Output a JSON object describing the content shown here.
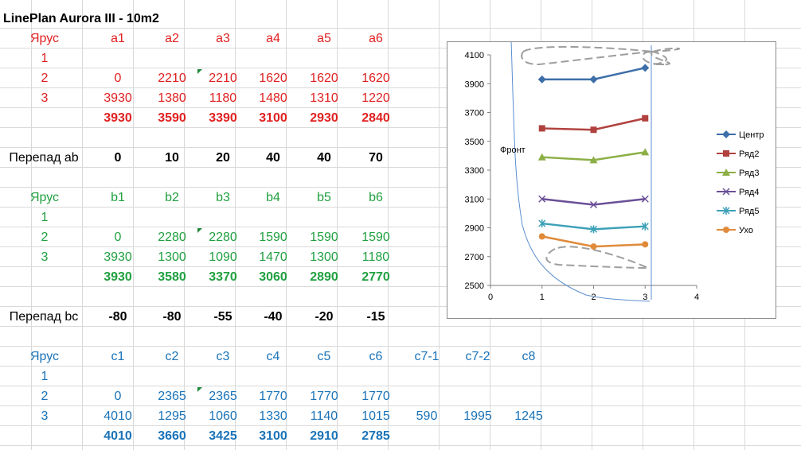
{
  "title": "LinePlan Aurora III - 10m2",
  "table_a": {
    "header": [
      "Ярус",
      "a1",
      "a2",
      "a3",
      "a4",
      "a5",
      "a6"
    ],
    "rows": [
      [
        "1",
        "",
        "",
        "",
        "",
        "",
        ""
      ],
      [
        "2",
        "0",
        "2210",
        "2210",
        "1620",
        "1620",
        "1620"
      ],
      [
        "3",
        "3930",
        "1380",
        "1180",
        "1480",
        "1310",
        "1220"
      ]
    ],
    "totals": [
      "3930",
      "3590",
      "3390",
      "3100",
      "2930",
      "2840"
    ]
  },
  "perepad_ab": {
    "label": "Перепад ab",
    "values": [
      "0",
      "10",
      "20",
      "40",
      "40",
      "70"
    ]
  },
  "table_b": {
    "header": [
      "Ярус",
      "b1",
      "b2",
      "b3",
      "b4",
      "b5",
      "b6"
    ],
    "rows": [
      [
        "1",
        "",
        "",
        "",
        "",
        "",
        ""
      ],
      [
        "2",
        "0",
        "2280",
        "2280",
        "1590",
        "1590",
        "1590"
      ],
      [
        "3",
        "3930",
        "1300",
        "1090",
        "1470",
        "1300",
        "1180"
      ]
    ],
    "totals": [
      "3930",
      "3580",
      "3370",
      "3060",
      "2890",
      "2770"
    ]
  },
  "perepad_bc": {
    "label": "Перепад bc",
    "values": [
      "-80",
      "-80",
      "-55",
      "-40",
      "-20",
      "-15"
    ]
  },
  "table_c": {
    "header": [
      "Ярус",
      "c1",
      "c2",
      "c3",
      "c4",
      "c5",
      "c6",
      "c7-1",
      "c7-2",
      "c8"
    ],
    "rows": [
      [
        "1",
        "",
        "",
        "",
        "",
        "",
        "",
        "",
        "",
        ""
      ],
      [
        "2",
        "0",
        "2365",
        "2365",
        "1770",
        "1770",
        "1770",
        "",
        "",
        ""
      ],
      [
        "3",
        "4010",
        "1295",
        "1060",
        "1330",
        "1140",
        "1015",
        "590",
        "1995",
        "1245"
      ]
    ],
    "totals": [
      "4010",
      "3660",
      "3425",
      "3100",
      "2910",
      "2785"
    ]
  },
  "chart_data": {
    "type": "line",
    "title": "",
    "annotation": "Фронт",
    "xlim": [
      0,
      4
    ],
    "ylim": [
      2500,
      4100
    ],
    "xticks": [
      "0",
      "1",
      "2",
      "3",
      "4"
    ],
    "yticks": [
      "2500",
      "2700",
      "2900",
      "3100",
      "3300",
      "3500",
      "3700",
      "3900",
      "4100"
    ],
    "legend_position": "right",
    "x": [
      1,
      2,
      3
    ],
    "series": [
      {
        "name": "Центр",
        "values": [
          3930,
          3930,
          4010
        ],
        "color": "#3c6ea8",
        "marker": "diamond"
      },
      {
        "name": "Ряд2",
        "values": [
          3590,
          3580,
          3660
        ],
        "color": "#b0413e",
        "marker": "square"
      },
      {
        "name": "Ряд3",
        "values": [
          3390,
          3370,
          3425
        ],
        "color": "#8caf45",
        "marker": "triangle"
      },
      {
        "name": "Ряд4",
        "values": [
          3100,
          3060,
          3100
        ],
        "color": "#6a4f97",
        "marker": "x"
      },
      {
        "name": "Ряд5",
        "values": [
          2930,
          2890,
          2910
        ],
        "color": "#3ea1b8",
        "marker": "star"
      },
      {
        "name": "Ухо",
        "values": [
          2840,
          2770,
          2785
        ],
        "color": "#e08a3a",
        "marker": "circle"
      }
    ]
  }
}
